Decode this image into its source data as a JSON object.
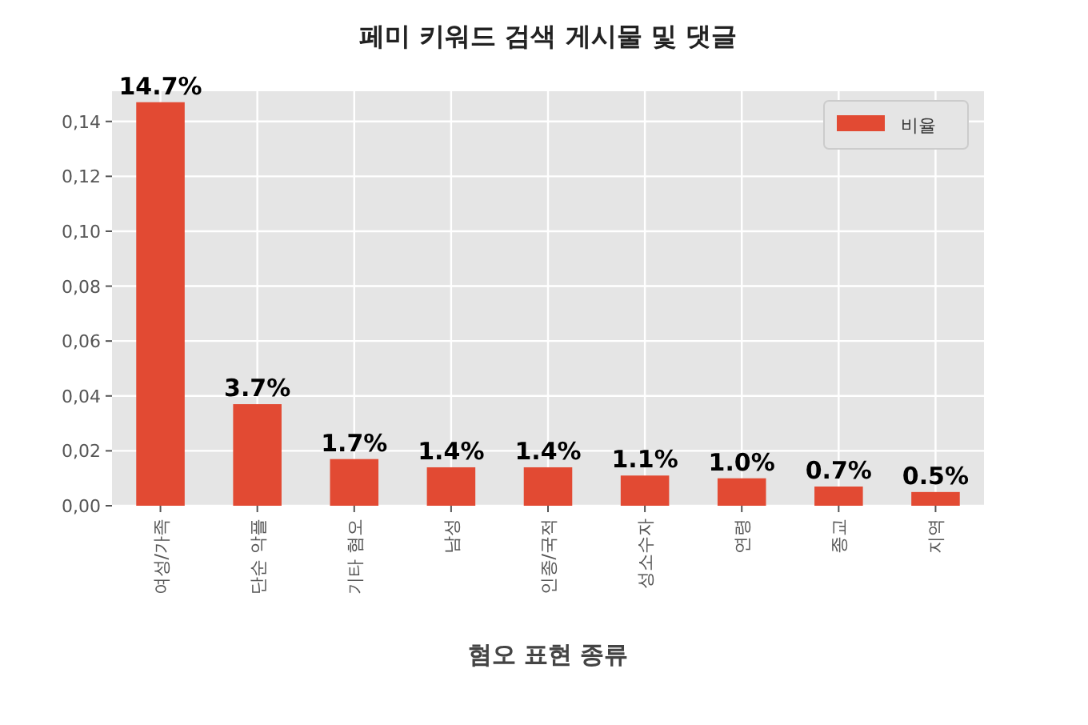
{
  "chart_data": {
    "type": "bar",
    "title": "페미 키워드 검색 게시물 및 댓글",
    "xlabel": "혐오 표현 종류",
    "categories": [
      "여성/가족",
      "단순 악플",
      "기타 혐오",
      "남성",
      "인종/국적",
      "성소수자",
      "연령",
      "종교",
      "지역"
    ],
    "series": [
      {
        "name": "비율",
        "color": "#e24a33",
        "values": [
          0.147,
          0.037,
          0.017,
          0.014,
          0.014,
          0.011,
          0.01,
          0.007,
          0.005
        ],
        "value_labels": [
          "14.7%",
          "3.7%",
          "1.7%",
          "1.4%",
          "1.4%",
          "1.1%",
          "1.0%",
          "0.7%",
          "0.5%"
        ]
      }
    ],
    "ylim": [
      0,
      0.151
    ],
    "yticks": [
      {
        "value": 0,
        "label": "0,00"
      },
      {
        "value": 0.02,
        "label": "0,02"
      },
      {
        "value": 0.04,
        "label": "0,04"
      },
      {
        "value": 0.06,
        "label": "0,06"
      },
      {
        "value": 0.08,
        "label": "0,08"
      },
      {
        "value": 0.1,
        "label": "0,10"
      },
      {
        "value": 0.12,
        "label": "0,12"
      },
      {
        "value": 0.14,
        "label": "0,14"
      }
    ],
    "grid": true,
    "legend": "top right"
  }
}
